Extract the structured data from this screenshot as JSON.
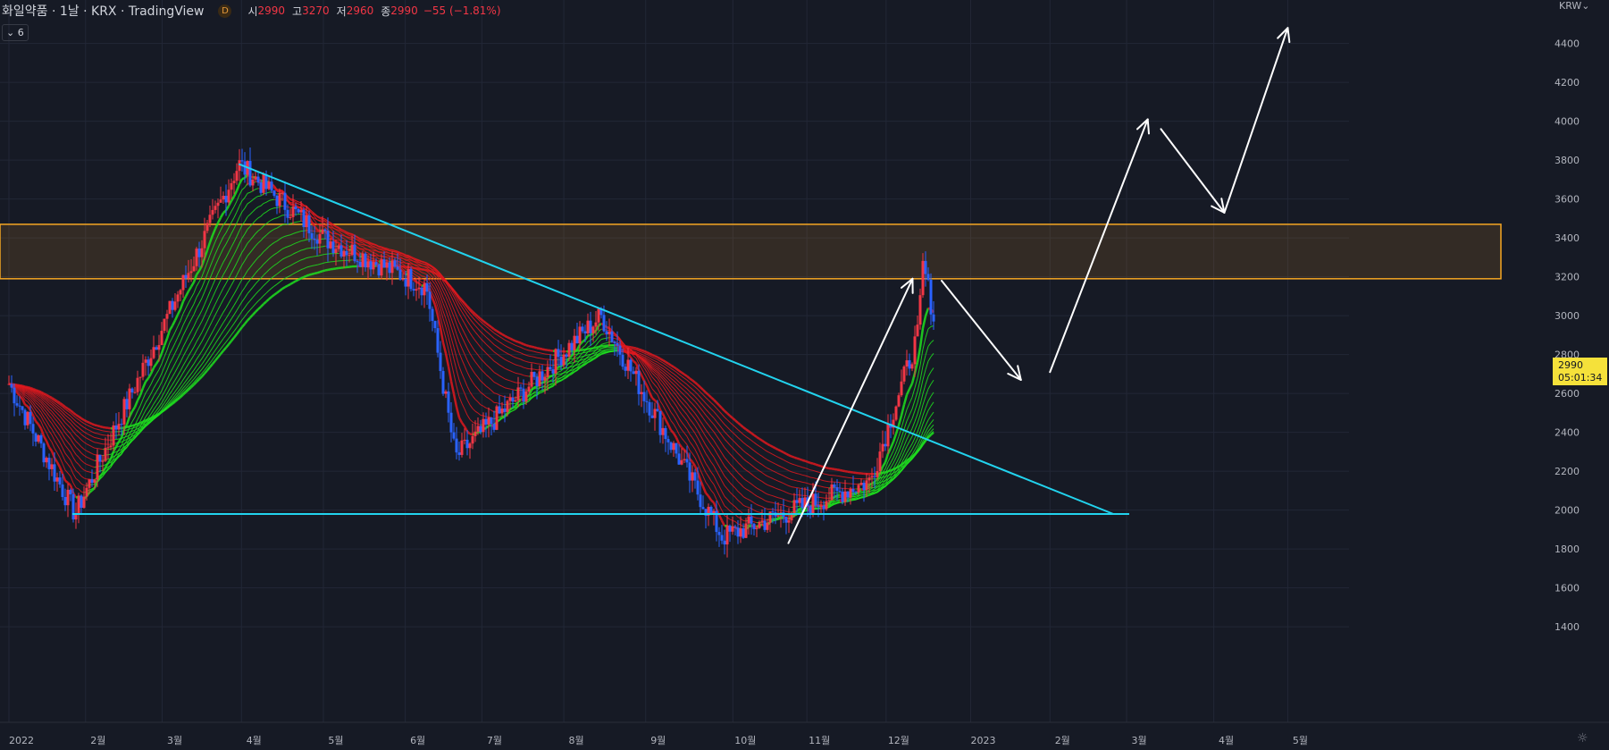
{
  "header": {
    "symbol": "화일약품 · 1날 · KRX · TradingView",
    "timeframe_badge": "D",
    "ohlc": [
      {
        "k": "시",
        "v": "2990"
      },
      {
        "k": "고",
        "v": "3270"
      },
      {
        "k": "저",
        "v": "2960"
      },
      {
        "k": "종",
        "v": "2990"
      }
    ],
    "change": "−55 (−1.81%)",
    "indicator_toggle": "⌄ 6",
    "currency": "KRW⌄"
  },
  "price_tag": {
    "price": "2990",
    "countdown": "05:01:34"
  },
  "colors": {
    "background": "#161a25",
    "grid": "#222736",
    "candle_up": "#f23645",
    "candle_down": "#2962ff",
    "ribbon_up": "#1ee21e",
    "ribbon_down": "#e0191e",
    "trendline": "#22d3ee",
    "zone": "#f5a623",
    "projection": "#ffffff",
    "tag": "#f5e13a"
  },
  "chart_data": {
    "type": "candlestick",
    "y_axis": {
      "ticks": [
        1400,
        1600,
        1800,
        2000,
        2200,
        2400,
        2600,
        2800,
        3000,
        3200,
        3400,
        3600,
        3800,
        4000,
        4200,
        4400
      ],
      "range": [
        1340,
        4580
      ]
    },
    "x_axis": {
      "labels": [
        "2022",
        "2월",
        "3월",
        "4월",
        "5월",
        "6월",
        "7월",
        "8월",
        "9월",
        "10월",
        "11월",
        "12월",
        "2023",
        "2월",
        "3월",
        "4월",
        "5월"
      ]
    },
    "key_points": [
      {
        "date": "2022-01-03",
        "price": 2650
      },
      {
        "date": "2022-01-28",
        "price": 1980
      },
      {
        "date": "2022-03-31",
        "price": 3780
      },
      {
        "date": "2022-05-02",
        "price": 3400
      },
      {
        "date": "2022-06-10",
        "price": 3150
      },
      {
        "date": "2022-06-21",
        "price": 2270
      },
      {
        "date": "2022-08-15",
        "price": 3000
      },
      {
        "date": "2022-09-30",
        "price": 1860
      },
      {
        "date": "2022-11-25",
        "price": 2150
      },
      {
        "date": "2022-12-13",
        "price": 2900
      },
      {
        "date": "2022-12-15",
        "price": 3270
      },
      {
        "date": "2022-12-19",
        "price": 2990
      }
    ],
    "resistance_zone": [
      3190,
      3470
    ],
    "support_line": 1980,
    "descending_trendline": [
      {
        "date": "2022-03-31",
        "price": 3780
      },
      {
        "date": "2023-02-25",
        "price": 1980
      }
    ],
    "projection_path": [
      {
        "date": "2022-10-25",
        "price": 1830
      },
      {
        "date": "2022-12-11",
        "price": 3190
      },
      {
        "date": "2022-12-22",
        "price": 3180
      },
      {
        "date": "2023-01-21",
        "price": 2670
      },
      {
        "date": "2023-02-01",
        "price": 2710
      },
      {
        "date": "2023-03-10",
        "price": 4010
      },
      {
        "date": "2023-03-15",
        "price": 3960
      },
      {
        "date": "2023-04-08",
        "price": 3530
      },
      {
        "date": "2023-04-08",
        "price": 3530
      },
      {
        "date": "2023-05-02",
        "price": 4480
      }
    ]
  }
}
